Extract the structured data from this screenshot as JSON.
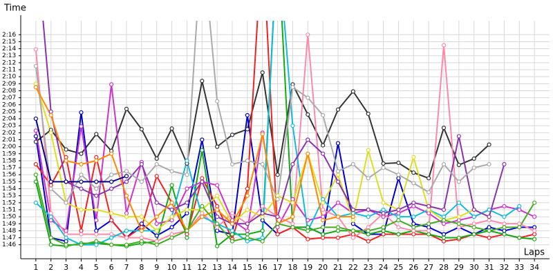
{
  "chart_data": {
    "type": "line",
    "y_label": "Time",
    "x_label": "Laps",
    "xlim": [
      0,
      35
    ],
    "ylim": [
      104,
      138
    ],
    "xticks": [
      1,
      2,
      3,
      4,
      5,
      6,
      7,
      8,
      9,
      10,
      11,
      12,
      13,
      14,
      15,
      16,
      17,
      18,
      19,
      20,
      21,
      22,
      23,
      24,
      25,
      26,
      27,
      28,
      29,
      30,
      31,
      32,
      33,
      34
    ],
    "yticks": [
      {
        "value": 106,
        "label": "1:46"
      },
      {
        "value": 107,
        "label": "1:47"
      },
      {
        "value": 108,
        "label": "1:48"
      },
      {
        "value": 109,
        "label": "1:49"
      },
      {
        "value": 110,
        "label": "1:50"
      },
      {
        "value": 111,
        "label": "1:51"
      },
      {
        "value": 112,
        "label": "1:52"
      },
      {
        "value": 113,
        "label": "1:53"
      },
      {
        "value": 114,
        "label": "1:54"
      },
      {
        "value": 115,
        "label": "1:55"
      },
      {
        "value": 116,
        "label": "1:56"
      },
      {
        "value": 117,
        "label": "1:57"
      },
      {
        "value": 118,
        "label": "1:58"
      },
      {
        "value": 119,
        "label": "1:59"
      },
      {
        "value": 120,
        "label": "2:00"
      },
      {
        "value": 121,
        "label": "2:01"
      },
      {
        "value": 122,
        "label": "2:02"
      },
      {
        "value": 123,
        "label": "2:03"
      },
      {
        "value": 124,
        "label": "2:04"
      },
      {
        "value": 125,
        "label": "2:05"
      },
      {
        "value": 126,
        "label": "2:06"
      },
      {
        "value": 127,
        "label": "2:07"
      },
      {
        "value": 128,
        "label": "2:08"
      },
      {
        "value": 129,
        "label": "2:09"
      },
      {
        "value": 130,
        "label": "2:10"
      },
      {
        "value": 131,
        "label": "2:11"
      },
      {
        "value": 132,
        "label": "2:12"
      },
      {
        "value": 133,
        "label": "2:13"
      },
      {
        "value": 134,
        "label": "2:14"
      },
      {
        "value": 135,
        "label": "2:15"
      },
      {
        "value": 136,
        "label": "2:16"
      }
    ],
    "grid": true,
    "x": [
      1,
      2,
      3,
      4,
      5,
      6,
      7,
      8,
      9,
      10,
      11,
      12,
      13,
      14,
      15,
      16,
      17,
      18,
      19,
      20,
      21,
      22,
      23,
      24,
      25,
      26,
      27,
      28,
      29,
      30,
      31,
      32,
      33,
      34
    ],
    "series": [
      {
        "color": "#333333",
        "values": [
          120.7,
          122.4,
          119.6,
          119,
          121.8,
          119.4,
          125.4,
          122.5,
          118.3,
          122.6,
          117.6,
          129.4,
          120,
          121.7,
          122.5,
          130.6,
          116,
          128.9,
          124.6,
          120.2,
          125.3,
          127.9,
          124.7,
          117.6,
          117.7,
          116.3,
          115.5,
          122.7,
          117.4,
          118.3,
          120.3,
          null,
          null,
          null
        ]
      },
      {
        "color": "#0000cc",
        "values": [
          121.5,
          107,
          106.5,
          124.9,
          108,
          109.5,
          107,
          109,
          107.3,
          108.5,
          110.5,
          121,
          108,
          107.5,
          124.5,
          109.5,
          107.5,
          108.5,
          108.5,
          107.5,
          120.5,
          109,
          107.5,
          107.5,
          115.5,
          109,
          108.5,
          107.5,
          108.5,
          107.5,
          108.5,
          108,
          108.5,
          108.5
        ]
      },
      {
        "color": "#ee2222",
        "values": [
          117.5,
          114.5,
          118.5,
          108,
          118.5,
          109.5,
          107,
          108.5,
          115.8,
          112,
          107.5,
          115.5,
          111.5,
          106.8,
          114,
          150,
          107.5,
          108.5,
          106.8,
          107,
          107,
          107.5,
          106.5,
          107.5,
          107.5,
          107.5,
          107.5,
          106.5,
          106.8,
          107.5,
          107,
          107.5,
          107,
          107.5
        ]
      },
      {
        "color": "#11aa11",
        "values": [
          115,
          106,
          105.8,
          106.2,
          106.2,
          106,
          105.8,
          106.2,
          106.5,
          114.5,
          107,
          119.5,
          105.8,
          107.5,
          107.5,
          108,
          150,
          108.5,
          108.5,
          107.5,
          108,
          108,
          107.5,
          108,
          107.5,
          108,
          107.5,
          107,
          107,
          107.5,
          108,
          107.5,
          107,
          106.8
        ]
      },
      {
        "color": "#cc33cc",
        "values": [
          122.3,
          109.5,
          108,
          122.9,
          109.5,
          128.9,
          110.5,
          117.8,
          109,
          109.5,
          114,
          115,
          114.5,
          109.5,
          108,
          122,
          108.5,
          112.5,
          109.5,
          110,
          112,
          110.5,
          111,
          110,
          110.5,
          111.5,
          110.5,
          109,
          109.5,
          110,
          111,
          111.5,
          111,
          110
        ]
      },
      {
        "color": "#ff88aa",
        "values": [
          133.9,
          110.5,
          107.5,
          107.5,
          107.5,
          107.5,
          107,
          107,
          106.5,
          107.5,
          108,
          110.5,
          108.5,
          110.5,
          109,
          111.5,
          110,
          109,
          136,
          111,
          110,
          107,
          108.5,
          110.5,
          108.5,
          108,
          108,
          134.5,
          108.5,
          109,
          109.5,
          109,
          109,
          108
        ]
      },
      {
        "color": "#11bbdd",
        "values": [
          112,
          110,
          107,
          106,
          106,
          107,
          108,
          108,
          108,
          110,
          118,
          110,
          109,
          108,
          106.5,
          107,
          150,
          123,
          108,
          112.5,
          110,
          110.5,
          110,
          111,
          110,
          110,
          111,
          110,
          112,
          110,
          111,
          110,
          111.5,
          null
        ]
      },
      {
        "color": "#dddd22",
        "values": [
          129,
          122,
          112,
          111,
          111,
          110.5,
          110,
          110,
          108,
          110,
          111,
          111,
          113,
          109,
          111,
          110,
          113,
          112,
          119,
          112,
          116,
          109.5,
          119.5,
          112,
          111,
          118.5,
          111,
          109.5,
          110,
          111,
          110,
          null,
          null,
          null
        ]
      },
      {
        "color": "#8833aa",
        "values": [
          150,
          125,
          115,
          114,
          113,
          114,
          115,
          117.5,
          112,
          111,
          112,
          115,
          110,
          109,
          109,
          110.5,
          110,
          117.5,
          121,
          119,
          115,
          111,
          111,
          110.5,
          111,
          112,
          111.5,
          111,
          121.5,
          111,
          110,
          117.5,
          null,
          null
        ]
      },
      {
        "color": "#aaaaaa",
        "values": [
          131.5,
          114,
          112,
          116,
          114,
          116,
          116.5,
          115,
          117.5,
          116.5,
          116,
          150,
          126.5,
          117.5,
          118,
          117.5,
          112.5,
          128.5,
          127,
          124.5,
          116.5,
          117.5,
          115.5,
          117,
          116,
          114.8,
          113.5,
          117.5,
          115,
          117,
          117.5,
          null,
          null,
          null
        ]
      },
      {
        "color": "#ff8800",
        "values": [
          128.5,
          124.5,
          118,
          117.5,
          118,
          119,
          113,
          108,
          110,
          112,
          108,
          110,
          111,
          109,
          113,
          121.8,
          109,
          110,
          119,
          109.5,
          110,
          110,
          null,
          null,
          null,
          null,
          null,
          null,
          null,
          null,
          null,
          null,
          null,
          null
        ]
      },
      {
        "color": "#44aa22",
        "values": [
          116,
          107,
          106,
          106,
          106.5,
          106,
          106,
          106.5,
          106,
          107,
          108,
          111.5,
          109,
          106.5,
          107,
          106.5,
          109,
          108.5,
          108,
          108.5,
          108.5,
          108,
          108,
          108.5,
          109.5,
          108.5,
          109,
          109.5,
          109,
          108.5,
          108,
          108.5,
          108.5,
          112
        ]
      },
      {
        "color": "#000088",
        "values": [
          124,
          115,
          115,
          115,
          115,
          115,
          115.8,
          null,
          null,
          null,
          null,
          null,
          null,
          null,
          null,
          null,
          null,
          null,
          null,
          null,
          null,
          null,
          null,
          null,
          null,
          null,
          null,
          null,
          null,
          null,
          null,
          null,
          null,
          null
        ]
      }
    ]
  }
}
